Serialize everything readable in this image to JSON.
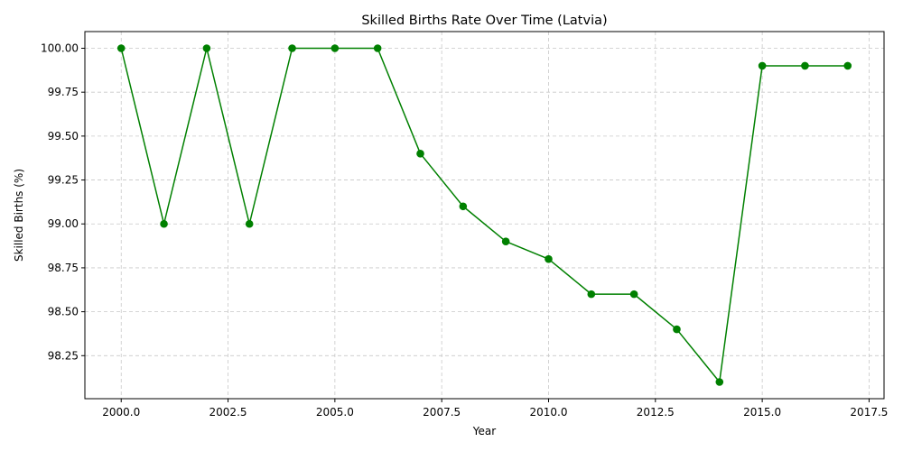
{
  "chart_data": {
    "type": "line",
    "title": "Skilled Births Rate Over Time (Latvia)",
    "xlabel": "Year",
    "ylabel": "Skilled Births (%)",
    "x": [
      2000,
      2001,
      2002,
      2003,
      2004,
      2005,
      2006,
      2007,
      2008,
      2009,
      2010,
      2011,
      2012,
      2013,
      2014,
      2015,
      2016,
      2017
    ],
    "series": [
      {
        "values": [
          100.0,
          99.0,
          100.0,
          99.0,
          100.0,
          100.0,
          100.0,
          99.4,
          99.1,
          98.9,
          98.8,
          98.6,
          98.6,
          98.4,
          98.1,
          99.9,
          99.9,
          99.9
        ],
        "color": "#008000",
        "marker": "circle"
      }
    ],
    "xlim": [
      1999.15,
      2017.85
    ],
    "ylim": [
      98.005,
      100.095
    ],
    "xticks": [
      "2000.0",
      "2002.5",
      "2005.0",
      "2007.5",
      "2010.0",
      "2012.5",
      "2015.0",
      "2017.5"
    ],
    "yticks": [
      "98.25",
      "98.50",
      "98.75",
      "99.00",
      "99.25",
      "99.50",
      "99.75",
      "100.00"
    ],
    "grid": true,
    "grid_style": "dashed",
    "grid_color": "#c8c8c8"
  }
}
